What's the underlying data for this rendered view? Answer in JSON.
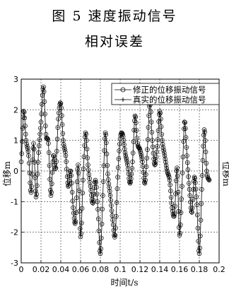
{
  "caption": {
    "line1": "图 5   速度振动信号",
    "line2": "相对误差"
  },
  "chart_data": {
    "type": "line",
    "xlabel": "时间t/s",
    "ylabel": "位移m",
    "right_ylabel_fragment": "位移m",
    "xlim": [
      0,
      0.2
    ],
    "ylim": [
      -3,
      3
    ],
    "xticks": [
      0,
      0.02,
      0.04,
      0.06,
      0.08,
      0.1,
      0.12,
      0.14,
      0.16,
      0.18,
      0.2
    ],
    "xtick_labels": [
      "0",
      "0.02",
      "0.04",
      "0.06",
      "0.08",
      "0.1",
      "0.12",
      "0.14",
      "0.16",
      "0.18",
      "0.2"
    ],
    "yticks": [
      -3,
      -2,
      -1,
      0,
      1,
      2,
      3
    ],
    "ytick_labels": [
      "-3",
      "-2",
      "-1",
      "0",
      "1",
      "2",
      "3"
    ],
    "grid": true,
    "legend_position": "top-right",
    "series": [
      {
        "name": "修正的位移振动信号",
        "marker": "circle",
        "x": [
          0.0,
          0.0025,
          0.005,
          0.0075,
          0.01,
          0.0125,
          0.015,
          0.0175,
          0.02,
          0.0225,
          0.025,
          0.0275,
          0.03,
          0.0325,
          0.035,
          0.0375,
          0.04,
          0.0425,
          0.045,
          0.0475,
          0.05,
          0.0525,
          0.055,
          0.0575,
          0.06,
          0.0625,
          0.065,
          0.0675,
          0.07,
          0.0725,
          0.075,
          0.0775,
          0.08,
          0.0825,
          0.085,
          0.0875,
          0.09,
          0.0925,
          0.095,
          0.0975,
          0.1,
          0.1025,
          0.105,
          0.1075,
          0.11,
          0.1125,
          0.115,
          0.1175,
          0.12,
          0.1225,
          0.125,
          0.1275,
          0.13,
          0.1325,
          0.135,
          0.1375,
          0.14,
          0.1425,
          0.145,
          0.1475,
          0.15,
          0.1525,
          0.155,
          0.1575,
          0.16,
          0.1625,
          0.165,
          0.1675,
          0.17,
          0.1725,
          0.175,
          0.1775,
          0.18,
          0.1825,
          0.185,
          0.1875,
          0.19
        ],
        "y": [
          0.3,
          1.95,
          1.0,
          0.5,
          -0.7,
          0.9,
          -0.85,
          0.6,
          1.6,
          2.75,
          1.2,
          0.9,
          -0.8,
          0.5,
          0.1,
          1.7,
          2.2,
          1.0,
          0.5,
          -0.5,
          0.0,
          -1.2,
          -1.65,
          0.2,
          -2.15,
          -0.3,
          1.25,
          0.2,
          -0.5,
          -1.05,
          -0.3,
          -1.25,
          -2.7,
          -0.8,
          1.25,
          -0.1,
          -0.8,
          -1.6,
          -2.1,
          -0.2,
          1.05,
          1.2,
          0.6,
          0.2,
          -0.4,
          0.3,
          1.8,
          0.9,
          0.7,
          0.3,
          -0.4,
          0.7,
          2.25,
          1.0,
          0.2,
          0.8,
          1.95,
          1.0,
          0.5,
          0.0,
          -0.3,
          -1.2,
          -1.4,
          0.1,
          -2.1,
          -0.5,
          1.6,
          0.5,
          -0.6,
          -1.35,
          -0.2,
          -1.1,
          -2.7,
          -0.6,
          1.35,
          0.0,
          -0.3
        ]
      },
      {
        "name": "真实的位移振动信号",
        "marker": "plus"
      }
    ]
  }
}
